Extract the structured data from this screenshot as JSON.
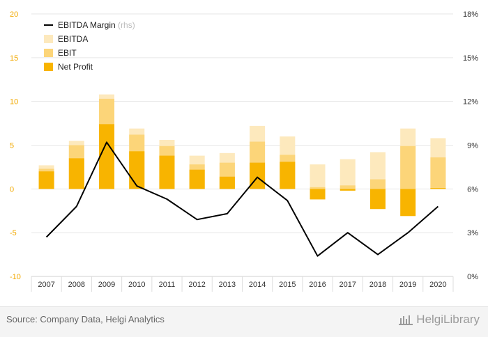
{
  "chart_data": {
    "type": "bar",
    "categories": [
      "2007",
      "2008",
      "2009",
      "2010",
      "2011",
      "2012",
      "2013",
      "2014",
      "2015",
      "2016",
      "2017",
      "2018",
      "2019",
      "2020"
    ],
    "series": [
      {
        "name": "EBITDA",
        "kind": "bar",
        "axis": "left",
        "values": [
          2.7,
          5.5,
          10.8,
          6.9,
          5.6,
          3.8,
          4.1,
          7.2,
          6.0,
          2.8,
          3.4,
          4.2,
          6.9,
          5.8
        ]
      },
      {
        "name": "EBIT",
        "kind": "bar",
        "axis": "left",
        "values": [
          2.3,
          5.0,
          10.3,
          6.2,
          4.9,
          2.8,
          3.0,
          5.4,
          3.9,
          0.2,
          0.4,
          1.1,
          4.9,
          3.6
        ]
      },
      {
        "name": "Net Profit",
        "kind": "bar",
        "axis": "left",
        "values": [
          2.0,
          3.5,
          7.4,
          4.3,
          3.8,
          2.2,
          1.4,
          3.0,
          3.1,
          -1.2,
          -0.2,
          -2.3,
          -3.1,
          0.1
        ]
      },
      {
        "name": "EBITDA Margin",
        "kind": "line",
        "axis": "right",
        "values": [
          2.7,
          4.8,
          9.2,
          6.2,
          5.3,
          3.9,
          4.3,
          6.8,
          5.2,
          1.4,
          3.0,
          1.5,
          3.0,
          4.8
        ]
      }
    ],
    "line_legend_suffix": "(rhs)",
    "left_axis": {
      "min": -10,
      "max": 20,
      "ticks": [
        -10,
        -5,
        0,
        5,
        10,
        15,
        20
      ]
    },
    "right_axis": {
      "min": 0,
      "max": 18,
      "ticks": [
        0,
        3,
        6,
        9,
        12,
        15,
        18
      ],
      "tick_labels": [
        "0%",
        "3%",
        "6%",
        "9%",
        "12%",
        "15%",
        "18%"
      ]
    },
    "grid": true,
    "legend_position": "top-left",
    "colors": {
      "EBITDA": "#fde9bd",
      "EBIT": "#fcd579",
      "Net Profit": "#f8b400",
      "EBITDA Margin": "#000000",
      "left_tick": "#f2a900",
      "right_tick": "#333333",
      "grid": "#e6e6e6"
    }
  },
  "footer": {
    "source": "Source: Company Data, Helgi Analytics",
    "brand": "HelgiLibrary"
  }
}
